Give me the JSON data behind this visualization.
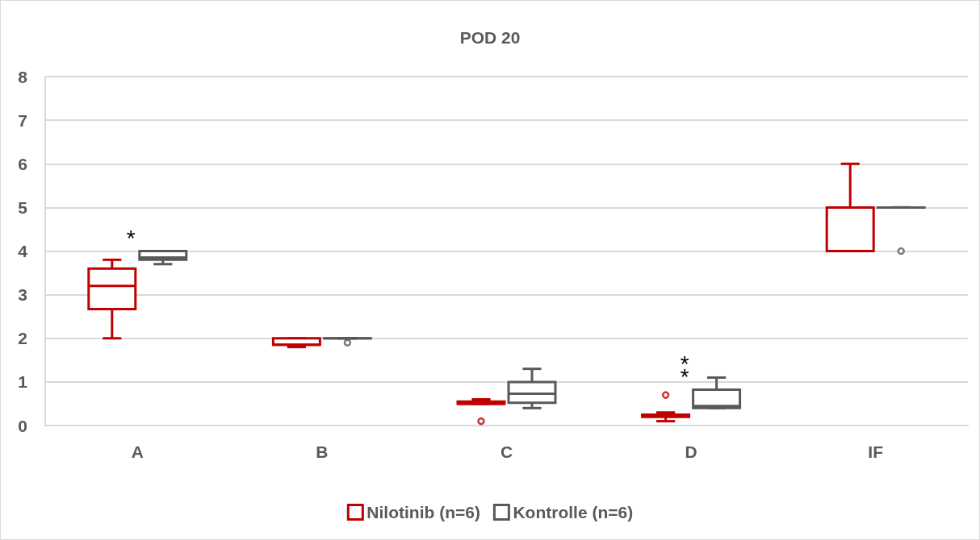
{
  "chart_data": {
    "type": "box",
    "title": "POD 20",
    "categories": [
      "A",
      "B",
      "C",
      "D",
      "IF"
    ],
    "series": [
      {
        "name": "Nilotinib (n=6)",
        "color": "#c00000",
        "boxes": [
          {
            "low": 2.0,
            "q1": 2.67,
            "median": 3.2,
            "q3": 3.6,
            "high": 3.8
          },
          {
            "low": 1.8,
            "q1": 1.85,
            "median": 1.85,
            "q3": 2.0,
            "high": 2.0
          },
          {
            "low": 0.5,
            "q1": 0.5,
            "median": 0.5,
            "q3": 0.55,
            "high": 0.6,
            "outliers": [
              0.1
            ]
          },
          {
            "low": 0.1,
            "q1": 0.2,
            "median": 0.25,
            "q3": 0.25,
            "high": 0.3,
            "outliers": [
              0.7
            ]
          },
          {
            "low": 4,
            "q1": 4,
            "median": 4,
            "q3": 5,
            "high": 6
          }
        ]
      },
      {
        "name": "Kontrolle (n=6)",
        "color": "#595959",
        "boxes": [
          {
            "low": 3.7,
            "q1": 3.8,
            "median": 3.85,
            "q3": 4.0,
            "high": 4.0
          },
          {
            "low": 2.0,
            "q1": 2.0,
            "median": 2.0,
            "q3": 2.0,
            "high": 2.0,
            "outliers": [
              1.9
            ]
          },
          {
            "low": 0.4,
            "q1": 0.52,
            "median": 0.73,
            "q3": 1.0,
            "high": 1.3
          },
          {
            "low": 0.4,
            "q1": 0.4,
            "median": 0.45,
            "q3": 0.82,
            "high": 1.1
          },
          {
            "low": 5,
            "q1": 5,
            "median": 5,
            "q3": 5,
            "high": 5,
            "outliers": [
              4
            ]
          }
        ]
      }
    ],
    "ylim": [
      0,
      8
    ],
    "yticks": [
      0,
      1,
      2,
      3,
      4,
      5,
      6,
      7,
      8
    ],
    "grid": "y",
    "legend": "bottom",
    "annotations": [
      {
        "text": "*",
        "x": "A",
        "y": 4.0
      },
      {
        "text": "**",
        "x": "D",
        "y": 0.82
      }
    ]
  }
}
